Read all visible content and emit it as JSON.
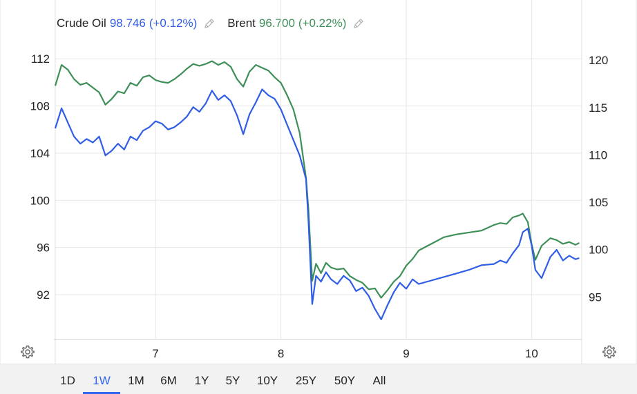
{
  "legend": [
    {
      "name": "Crude Oil",
      "value": "98.746",
      "change": "(+0.12%)",
      "color": "#2f5de6"
    },
    {
      "name": "Brent",
      "value": "96.700",
      "change": "(+0.22%)",
      "color": "#3d8f57"
    }
  ],
  "ranges": [
    "1D",
    "1W",
    "1M",
    "6M",
    "1Y",
    "5Y",
    "10Y",
    "25Y",
    "50Y",
    "All"
  ],
  "active_range": "1W",
  "icons": {
    "settings_left": "gear-icon",
    "settings_right": "gear-icon",
    "edit": "pencil-icon"
  },
  "chart_data": {
    "type": "line",
    "x_tick_labels": [
      "7",
      "8",
      "9",
      "10"
    ],
    "x_ticks": [
      7,
      8,
      9,
      10
    ],
    "xlim": [
      6.2,
      10.4
    ],
    "left_axis": {
      "ticks": [
        92,
        96,
        100,
        104,
        108,
        112
      ],
      "ylim": [
        88.2,
        113
      ]
    },
    "right_axis": {
      "ticks": [
        95,
        100,
        105,
        110,
        115,
        120
      ],
      "ylim": [
        90.5,
        121.4
      ]
    },
    "grid": true,
    "series": [
      {
        "name": "Crude Oil",
        "axis": "left",
        "color": "#2f5de6",
        "x": [
          6.2,
          6.25,
          6.3,
          6.35,
          6.4,
          6.45,
          6.5,
          6.55,
          6.6,
          6.65,
          6.7,
          6.75,
          6.8,
          6.85,
          6.9,
          6.95,
          7.0,
          7.05,
          7.1,
          7.15,
          7.2,
          7.25,
          7.3,
          7.35,
          7.4,
          7.45,
          7.5,
          7.55,
          7.6,
          7.65,
          7.7,
          7.75,
          7.8,
          7.85,
          7.9,
          7.95,
          8.0,
          8.05,
          8.1,
          8.15,
          8.2,
          8.22,
          8.25,
          8.28,
          8.32,
          8.36,
          8.4,
          8.45,
          8.5,
          8.55,
          8.6,
          8.65,
          8.7,
          8.75,
          8.8,
          8.85,
          8.9,
          8.95,
          9.0,
          9.05,
          9.1,
          9.2,
          9.3,
          9.4,
          9.5,
          9.6,
          9.7,
          9.75,
          9.8,
          9.85,
          9.9,
          9.93,
          9.97,
          10.0,
          10.03,
          10.08,
          10.15,
          10.2,
          10.25,
          10.3,
          10.35,
          10.38
        ],
        "values": [
          106.1,
          107.8,
          106.6,
          105.4,
          104.8,
          105.2,
          104.9,
          105.4,
          103.8,
          104.2,
          104.8,
          104.3,
          105.4,
          105.1,
          105.9,
          106.2,
          106.7,
          106.5,
          106.0,
          106.2,
          106.6,
          107.1,
          107.9,
          107.5,
          108.2,
          109.3,
          108.5,
          108.9,
          108.4,
          107.2,
          105.6,
          107.3,
          108.3,
          109.4,
          108.9,
          108.6,
          107.7,
          106.4,
          105.1,
          103.8,
          101.8,
          98.2,
          91.2,
          93.6,
          93.1,
          93.9,
          93.3,
          92.9,
          93.6,
          93.2,
          92.3,
          92.6,
          91.9,
          90.8,
          89.9,
          91.1,
          92.2,
          93.0,
          92.5,
          93.3,
          92.9,
          93.2,
          93.5,
          93.8,
          94.1,
          94.5,
          94.6,
          94.9,
          94.7,
          95.5,
          96.2,
          97.3,
          97.6,
          96.2,
          94.1,
          93.4,
          95.2,
          95.8,
          94.9,
          95.3,
          95.0,
          95.1
        ]
      },
      {
        "name": "Brent",
        "axis": "right",
        "color": "#3d8f57",
        "x": [
          6.2,
          6.25,
          6.3,
          6.35,
          6.4,
          6.45,
          6.5,
          6.55,
          6.6,
          6.65,
          6.7,
          6.75,
          6.8,
          6.85,
          6.9,
          6.95,
          7.0,
          7.05,
          7.1,
          7.15,
          7.2,
          7.25,
          7.3,
          7.35,
          7.4,
          7.45,
          7.5,
          7.55,
          7.6,
          7.65,
          7.7,
          7.75,
          7.8,
          7.85,
          7.9,
          7.95,
          8.0,
          8.05,
          8.1,
          8.15,
          8.2,
          8.22,
          8.25,
          8.28,
          8.32,
          8.36,
          8.4,
          8.45,
          8.5,
          8.55,
          8.6,
          8.65,
          8.7,
          8.75,
          8.8,
          8.85,
          8.9,
          8.95,
          9.0,
          9.05,
          9.1,
          9.2,
          9.3,
          9.4,
          9.5,
          9.6,
          9.7,
          9.75,
          9.8,
          9.85,
          9.9,
          9.93,
          9.97,
          10.0,
          10.03,
          10.08,
          10.15,
          10.2,
          10.25,
          10.3,
          10.35,
          10.38
        ],
        "values": [
          117.3,
          119.5,
          119.0,
          118.0,
          117.4,
          117.6,
          117.1,
          116.6,
          115.3,
          115.9,
          116.7,
          116.5,
          117.6,
          117.3,
          118.2,
          118.4,
          117.9,
          117.7,
          117.6,
          118.0,
          118.5,
          119.1,
          119.6,
          119.4,
          119.6,
          119.9,
          119.5,
          119.8,
          119.3,
          118.0,
          117.2,
          118.8,
          119.5,
          119.2,
          118.9,
          118.2,
          117.6,
          116.3,
          114.8,
          112.3,
          107.6,
          104.2,
          96.7,
          98.5,
          97.5,
          98.6,
          98.1,
          97.9,
          98.0,
          97.2,
          96.8,
          96.5,
          95.8,
          95.9,
          94.9,
          95.7,
          96.6,
          97.2,
          98.3,
          99.0,
          99.9,
          100.6,
          101.3,
          101.6,
          101.8,
          102.0,
          102.6,
          102.8,
          102.7,
          103.4,
          103.6,
          103.8,
          102.9,
          100.6,
          98.9,
          100.4,
          101.2,
          101.0,
          100.6,
          100.8,
          100.5,
          100.7
        ]
      }
    ]
  }
}
